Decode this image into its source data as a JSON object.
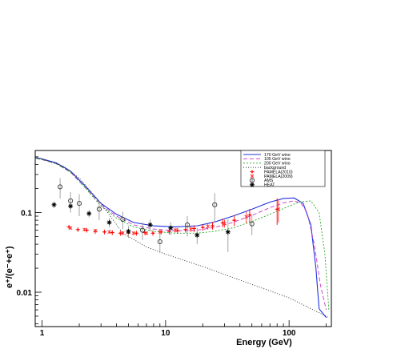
{
  "chart_data": {
    "type": "line",
    "x_scale": "log",
    "y_scale": "log",
    "xlim": [
      0.88,
      220
    ],
    "ylim": [
      0.0037,
      0.6
    ],
    "xlabel": "Energy (GeV)",
    "ylabel": "e⁺/(e⁻+e⁺)",
    "x_ticks": [
      {
        "value": 1,
        "label": "1"
      },
      {
        "value": 10,
        "label": "10"
      },
      {
        "value": 100,
        "label": "100"
      }
    ],
    "y_ticks": [
      {
        "value": 0.1,
        "label": "0.1"
      },
      {
        "value": 0.01,
        "label": "0.01"
      }
    ],
    "legend_position": "top-right",
    "series": [
      {
        "name": "170 GeV wino",
        "kind": "line",
        "color": "#2233dd",
        "dash": "solid",
        "x": [
          0.88,
          1.0,
          1.3,
          1.7,
          2.2,
          3.0,
          4.0,
          5.5,
          8,
          12,
          18,
          25,
          35,
          50,
          70,
          90,
          110,
          130,
          150,
          165,
          175,
          200
        ],
        "y": [
          0.49,
          0.47,
          0.42,
          0.33,
          0.22,
          0.13,
          0.095,
          0.075,
          0.068,
          0.066,
          0.068,
          0.076,
          0.09,
          0.11,
          0.135,
          0.15,
          0.152,
          0.13,
          0.07,
          0.02,
          0.0062,
          0.0048
        ]
      },
      {
        "name": "105 GeV wino",
        "kind": "line",
        "color": "#cc33cc",
        "dash": "5,3",
        "x": [
          0.88,
          1.0,
          1.3,
          1.7,
          2.2,
          3.0,
          4.0,
          5.5,
          8,
          12,
          18,
          25,
          35,
          50,
          70,
          90,
          110,
          125,
          140,
          160,
          180,
          200
        ],
        "y": [
          0.48,
          0.46,
          0.41,
          0.32,
          0.21,
          0.125,
          0.09,
          0.07,
          0.062,
          0.059,
          0.06,
          0.065,
          0.075,
          0.092,
          0.115,
          0.132,
          0.14,
          0.13,
          0.1,
          0.04,
          0.012,
          0.006
        ]
      },
      {
        "name": "200 GeV wino",
        "kind": "line",
        "color": "#22aa22",
        "dash": "2,2",
        "x": [
          0.88,
          1.0,
          1.3,
          1.7,
          2.2,
          3.0,
          4.0,
          5.5,
          8,
          12,
          18,
          25,
          35,
          50,
          70,
          90,
          120,
          150,
          175,
          195,
          210
        ],
        "y": [
          0.48,
          0.46,
          0.41,
          0.32,
          0.21,
          0.12,
          0.085,
          0.066,
          0.058,
          0.055,
          0.055,
          0.058,
          0.064,
          0.077,
          0.095,
          0.112,
          0.135,
          0.14,
          0.1,
          0.03,
          0.006
        ]
      },
      {
        "name": "background",
        "kind": "line",
        "color": "#222222",
        "dash": "1,2",
        "x": [
          0.88,
          1.0,
          1.5,
          2.0,
          3.0,
          4.5,
          7,
          10,
          20,
          50,
          100,
          210
        ],
        "y": [
          0.49,
          0.47,
          0.38,
          0.27,
          0.13,
          0.055,
          0.037,
          0.03,
          0.021,
          0.0125,
          0.0085,
          0.0048
        ]
      },
      {
        "name": "PAMELA(2010)",
        "kind": "points",
        "color": "#ff0000",
        "marker": "+",
        "points": [
          {
            "x": 1.65,
            "y": 0.066,
            "yerr": 0.004
          },
          {
            "x": 1.95,
            "y": 0.061,
            "yerr": 0.004
          },
          {
            "x": 2.3,
            "y": 0.06,
            "yerr": 0.004
          },
          {
            "x": 2.7,
            "y": 0.058,
            "yerr": 0.004
          },
          {
            "x": 3.2,
            "y": 0.057,
            "yerr": 0.004
          },
          {
            "x": 3.7,
            "y": 0.056,
            "yerr": 0.004
          },
          {
            "x": 4.3,
            "y": 0.055,
            "yerr": 0.004
          },
          {
            "x": 5.0,
            "y": 0.055,
            "yerr": 0.004
          },
          {
            "x": 5.8,
            "y": 0.055,
            "yerr": 0.004
          },
          {
            "x": 6.8,
            "y": 0.056,
            "yerr": 0.004
          },
          {
            "x": 7.9,
            "y": 0.055,
            "yerr": 0.004
          },
          {
            "x": 9.2,
            "y": 0.057,
            "yerr": 0.004
          },
          {
            "x": 10.7,
            "y": 0.058,
            "yerr": 0.005
          },
          {
            "x": 12.5,
            "y": 0.059,
            "yerr": 0.005
          },
          {
            "x": 14.5,
            "y": 0.061,
            "yerr": 0.005
          },
          {
            "x": 17,
            "y": 0.063,
            "yerr": 0.006
          },
          {
            "x": 20,
            "y": 0.065,
            "yerr": 0.006
          },
          {
            "x": 24,
            "y": 0.068,
            "yerr": 0.007
          },
          {
            "x": 29,
            "y": 0.074,
            "yerr": 0.009
          },
          {
            "x": 36,
            "y": 0.08,
            "yerr": 0.012
          },
          {
            "x": 48,
            "y": 0.093,
            "yerr": 0.018
          },
          {
            "x": 80,
            "y": 0.11,
            "yerr": 0.04
          }
        ]
      },
      {
        "name": "PAMELA(2009)",
        "kind": "points",
        "color": "#ff3333",
        "marker": "x",
        "points": [
          {
            "x": 1.7,
            "y": 0.064,
            "yerr": 0.003
          },
          {
            "x": 2.2,
            "y": 0.061,
            "yerr": 0.003
          },
          {
            "x": 2.7,
            "y": 0.059,
            "yerr": 0.003
          },
          {
            "x": 3.5,
            "y": 0.057,
            "yerr": 0.003
          },
          {
            "x": 4.5,
            "y": 0.055,
            "yerr": 0.003
          },
          {
            "x": 5.5,
            "y": 0.055,
            "yerr": 0.003
          },
          {
            "x": 7.0,
            "y": 0.055,
            "yerr": 0.003
          },
          {
            "x": 9.0,
            "y": 0.057,
            "yerr": 0.004
          },
          {
            "x": 12,
            "y": 0.06,
            "yerr": 0.004
          },
          {
            "x": 16,
            "y": 0.062,
            "yerr": 0.005
          },
          {
            "x": 22,
            "y": 0.067,
            "yerr": 0.006
          },
          {
            "x": 30,
            "y": 0.073,
            "yerr": 0.008
          },
          {
            "x": 45,
            "y": 0.088,
            "yerr": 0.015
          },
          {
            "x": 82,
            "y": 0.11,
            "yerr": 0.035
          }
        ]
      },
      {
        "name": "AMS",
        "kind": "points",
        "color": "#333333",
        "marker": "o",
        "points": [
          {
            "x": 1.4,
            "y": 0.21,
            "yerr": 0.06
          },
          {
            "x": 1.7,
            "y": 0.14,
            "yerr": 0.04
          },
          {
            "x": 2.0,
            "y": 0.13,
            "yerr": 0.04
          },
          {
            "x": 2.9,
            "y": 0.11,
            "yerr": 0.03
          },
          {
            "x": 4.5,
            "y": 0.082,
            "yerr": 0.02
          },
          {
            "x": 6.5,
            "y": 0.06,
            "yerr": 0.015
          },
          {
            "x": 9.0,
            "y": 0.043,
            "yerr": 0.012
          },
          {
            "x": 15,
            "y": 0.07,
            "yerr": 0.02
          },
          {
            "x": 25,
            "y": 0.125,
            "yerr": 0.05
          },
          {
            "x": 50,
            "y": 0.072,
            "yerr": 0.02
          }
        ]
      },
      {
        "name": "HEAT",
        "kind": "points",
        "color": "#000000",
        "marker": "star",
        "points": [
          {
            "x": 1.25,
            "y": 0.125,
            "yerr": 0.012
          },
          {
            "x": 1.7,
            "y": 0.12,
            "yerr": 0.01
          },
          {
            "x": 2.4,
            "y": 0.097,
            "yerr": 0.01
          },
          {
            "x": 3.5,
            "y": 0.075,
            "yerr": 0.01
          },
          {
            "x": 5.0,
            "y": 0.058,
            "yerr": 0.01
          },
          {
            "x": 7.5,
            "y": 0.07,
            "yerr": 0.012
          },
          {
            "x": 11,
            "y": 0.064,
            "yerr": 0.012
          },
          {
            "x": 18,
            "y": 0.052,
            "yerr": 0.012
          },
          {
            "x": 32,
            "y": 0.057,
            "yerr": 0.025
          }
        ]
      }
    ]
  }
}
